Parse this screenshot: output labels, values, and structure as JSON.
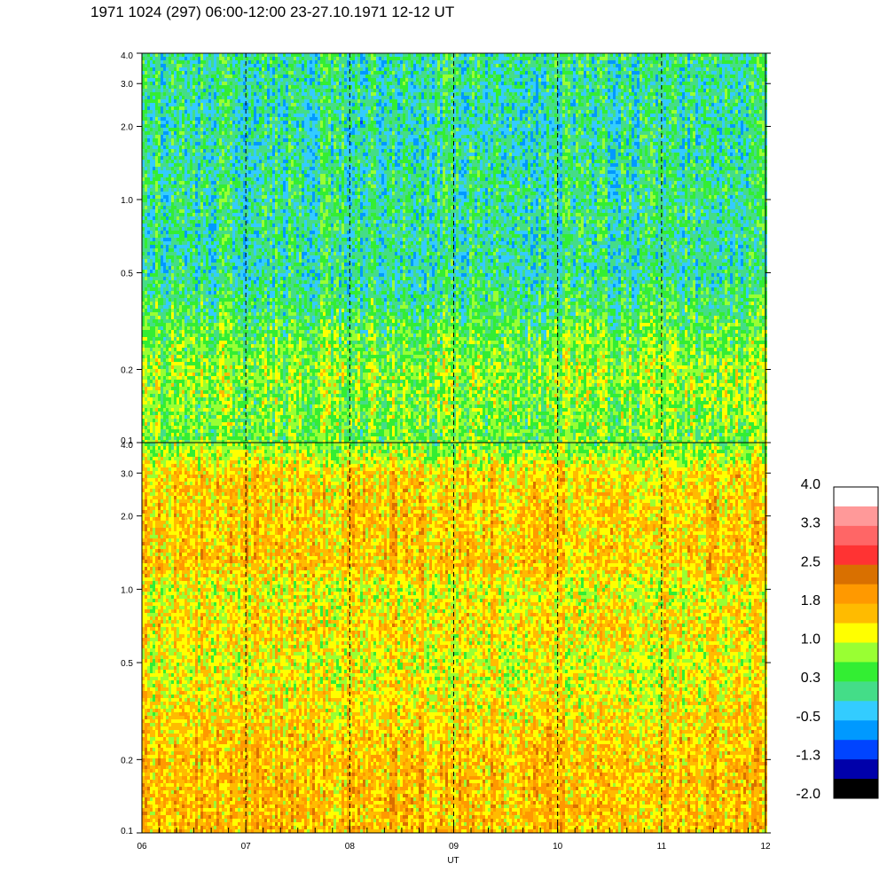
{
  "chart_data": {
    "type": "heatmap",
    "title": "1971 1024 (297) 06:00-12:00 23-27.10.1971  12-12 UT",
    "xlabel": "UT",
    "x_ticks": [
      "06",
      "07",
      "08",
      "09",
      "10",
      "11",
      "12"
    ],
    "x_range": [
      6,
      12
    ],
    "y_scale": "log",
    "y_range": [
      0.1,
      4.0
    ],
    "y_ticks": [
      0.1,
      0.2,
      0.5,
      1.0,
      2.0,
      3.0,
      4.0
    ],
    "y_tick_labels": [
      "0.1",
      "0.2",
      "0.5",
      "1.0",
      "2.0",
      "3.0",
      "4.0"
    ],
    "dashed_hour_lines": [
      7,
      8,
      9,
      10,
      11
    ],
    "panels": [
      {
        "name": "upper",
        "profile": [
          {
            "y": 0.1,
            "value": 0.6
          },
          {
            "y": 0.2,
            "value": 0.8
          },
          {
            "y": 0.5,
            "value": 0.0
          },
          {
            "y": 1.0,
            "value": 0.1
          },
          {
            "y": 2.0,
            "value": 0.0
          },
          {
            "y": 4.0,
            "value": 0.1
          }
        ]
      },
      {
        "name": "lower",
        "profile": [
          {
            "y": 0.1,
            "value": 1.6
          },
          {
            "y": 0.2,
            "value": 1.6
          },
          {
            "y": 0.5,
            "value": 1.1
          },
          {
            "y": 0.7,
            "value": 1.4
          },
          {
            "y": 1.0,
            "value": 1.1
          },
          {
            "y": 1.2,
            "value": 1.5
          },
          {
            "y": 2.0,
            "value": 1.5
          },
          {
            "y": 3.0,
            "value": 1.4
          },
          {
            "y": 4.0,
            "value": 0.6
          }
        ]
      }
    ],
    "colorbar": {
      "labels": [
        "4.0",
        "3.3",
        "2.5",
        "1.8",
        "1.0",
        "0.3",
        "-0.5",
        "-1.3",
        "-2.0"
      ],
      "range": [
        -2.0,
        4.0
      ],
      "colors": [
        "#ffffff",
        "#ff9999",
        "#ff6666",
        "#ff3333",
        "#d97000",
        "#ff9900",
        "#ffbb00",
        "#ffff00",
        "#99ff33",
        "#33ee33",
        "#44dd88",
        "#33ccff",
        "#0099ff",
        "#0044ff",
        "#0000aa",
        "#000000"
      ]
    }
  }
}
